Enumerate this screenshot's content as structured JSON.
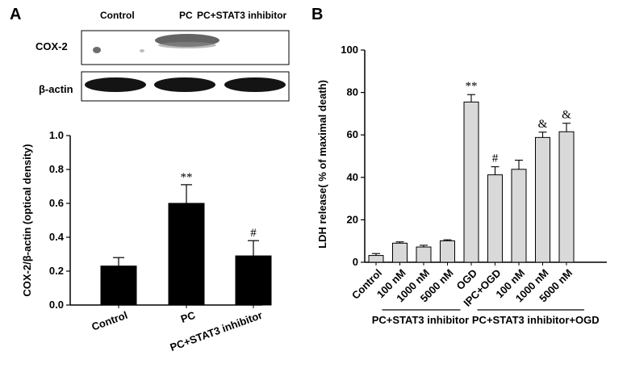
{
  "panel_labels": {
    "a": "A",
    "b": "B"
  },
  "blot": {
    "lane_labels": [
      "Control",
      "PC",
      "PC+STAT3 inhibitor"
    ],
    "rows": [
      {
        "label": "COX-2"
      },
      {
        "label": "β-actin"
      }
    ]
  },
  "chart_data": [
    {
      "type": "bar",
      "panel": "A",
      "categories": [
        "Control",
        "PC",
        "PC+STAT3 inhibitor"
      ],
      "values": [
        0.23,
        0.6,
        0.29
      ],
      "errors": [
        0.05,
        0.11,
        0.09
      ],
      "annotations": [
        "",
        "**",
        "#"
      ],
      "title": "",
      "xlabel": "",
      "ylabel": "COX-2/β-actin (optical density)",
      "ylim": [
        0,
        1.0
      ],
      "yticks": [
        "0.0",
        "0.2",
        "0.4",
        "0.6",
        "0.8",
        "1.0"
      ],
      "bar_color": "#000000",
      "grid": false
    },
    {
      "type": "bar",
      "panel": "B",
      "categories": [
        "Control",
        "100 nM",
        "1000 nM",
        "5000 nM",
        "OGD",
        "IPC+OGD",
        "100 nM",
        "1000 nM",
        "5000 nM"
      ],
      "values": [
        3.2,
        9.0,
        7.2,
        10.1,
        75.5,
        41.2,
        43.8,
        58.8,
        61.5
      ],
      "errors": [
        0.9,
        0.6,
        0.8,
        0.5,
        3.5,
        3.8,
        4.3,
        2.5,
        4.0
      ],
      "annotations": [
        "",
        "",
        "",
        "",
        "**",
        "#",
        "",
        "&",
        "&"
      ],
      "group_labels": [
        "PC+STAT3 inhibitor",
        "PC+STAT3 inhibitor+OGD"
      ],
      "title": "",
      "xlabel": "",
      "ylabel": "LDH release( % of maximal  death)",
      "ylim": [
        0,
        100
      ],
      "yticks": [
        "0",
        "20",
        "40",
        "60",
        "80",
        "100"
      ],
      "bar_color": "#d9d9d9",
      "grid": false
    }
  ]
}
